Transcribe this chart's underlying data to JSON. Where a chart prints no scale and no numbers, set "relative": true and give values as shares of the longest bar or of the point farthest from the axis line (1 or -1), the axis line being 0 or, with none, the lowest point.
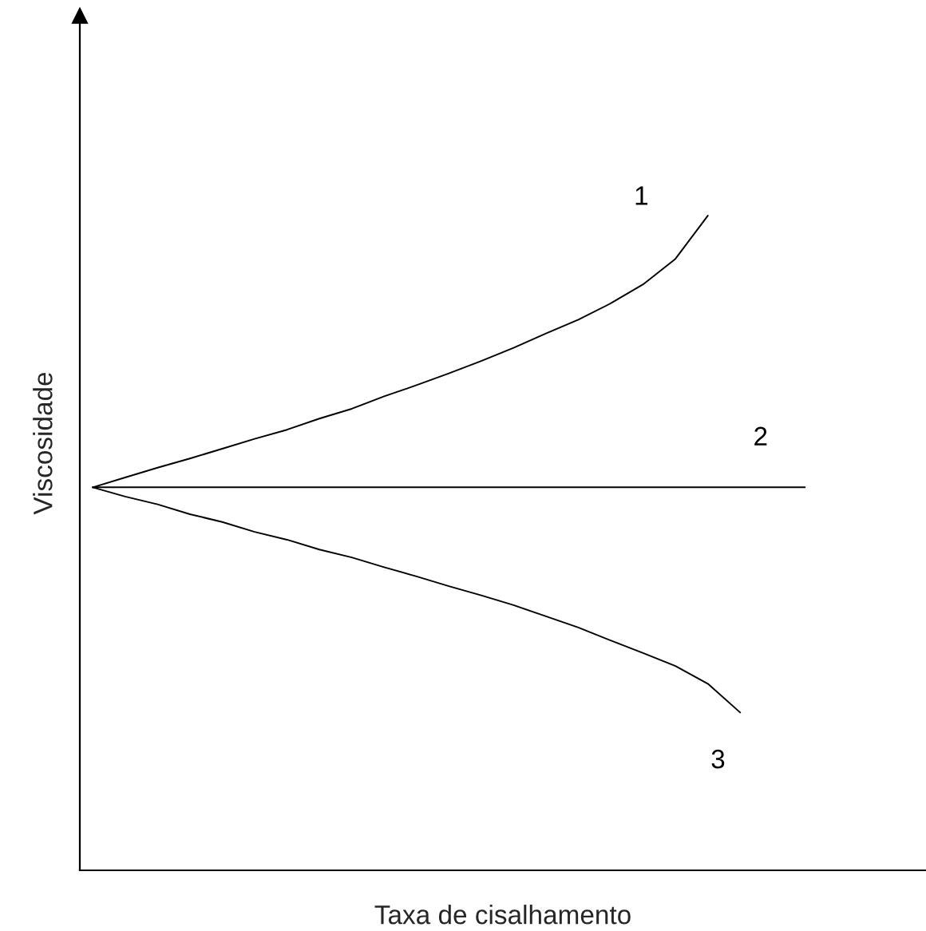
{
  "chart_data": {
    "type": "line",
    "relative": true,
    "xlabel": "Taxa de cisalhamento",
    "ylabel": "Viscosidade",
    "legend": false,
    "marker": "none",
    "line_style": "solid",
    "categories": [
      null,
      null,
      null,
      null,
      null,
      null,
      null,
      null,
      null,
      null,
      null,
      null,
      null,
      null,
      null,
      null,
      null,
      null,
      null,
      null,
      null,
      null,
      null
    ],
    "series": [
      {
        "name": "1",
        "color": "#000000",
        "values": [
          0.585,
          0.6,
          0.615,
          0.629,
          0.644,
          0.659,
          0.673,
          0.69,
          0.705,
          0.724,
          0.741,
          0.759,
          0.778,
          0.798,
          0.82,
          0.841,
          0.866,
          0.895,
          0.934,
          1.0,
          null,
          null,
          null
        ]
      },
      {
        "name": "2",
        "color": "#000000",
        "values": [
          0.585,
          0.585,
          0.585,
          0.585,
          0.585,
          0.585,
          0.585,
          0.585,
          0.585,
          0.585,
          0.585,
          0.585,
          0.585,
          0.585,
          0.585,
          0.585,
          0.585,
          0.585,
          0.585,
          0.585,
          0.585,
          0.585,
          0.585
        ]
      },
      {
        "name": "3",
        "color": "#000000",
        "values": [
          0.585,
          0.571,
          0.559,
          0.544,
          0.532,
          0.517,
          0.505,
          0.49,
          0.478,
          0.463,
          0.449,
          0.434,
          0.42,
          0.405,
          0.388,
          0.371,
          0.351,
          0.332,
          0.312,
          0.285,
          0.241,
          null,
          null
        ]
      }
    ]
  }
}
